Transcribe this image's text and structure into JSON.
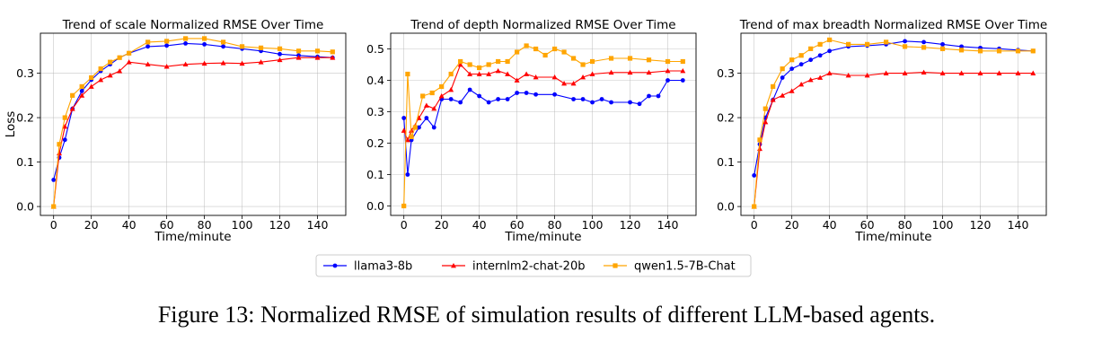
{
  "caption": "Figure 13: Normalized RMSE of simulation results of different LLM-based agents.",
  "legend": {
    "placement": "bottom-center",
    "items": [
      {
        "name": "llama3-8b",
        "color": "#0000ff",
        "marker": "circle"
      },
      {
        "name": "internlm2-chat-20b",
        "color": "#ff0000",
        "marker": "triangle"
      },
      {
        "name": "qwen1.5-7B-Chat",
        "color": "#ffa500",
        "marker": "square"
      }
    ]
  },
  "chart_data": [
    {
      "type": "line",
      "title": "Trend of scale Normalized RMSE Over Time",
      "xlabel": "Time/minute",
      "ylabel": "Loss",
      "xlim": [
        -7,
        155
      ],
      "ylim": [
        -0.02,
        0.39
      ],
      "xticks": [
        0,
        20,
        40,
        60,
        80,
        100,
        120,
        140
      ],
      "yticks": [
        0.0,
        0.1,
        0.2,
        0.3
      ],
      "ytick_labels": [
        "0.0",
        "0.1",
        "0.2",
        "0.3"
      ],
      "grid": true,
      "series": [
        {
          "name": "llama3-8b",
          "points": [
            [
              0,
              0.06
            ],
            [
              3,
              0.11
            ],
            [
              6,
              0.15
            ],
            [
              10,
              0.22
            ],
            [
              15,
              0.26
            ],
            [
              20,
              0.285
            ],
            [
              25,
              0.305
            ],
            [
              30,
              0.32
            ],
            [
              35,
              0.335
            ],
            [
              40,
              0.345
            ],
            [
              50,
              0.36
            ],
            [
              60,
              0.362
            ],
            [
              70,
              0.367
            ],
            [
              80,
              0.365
            ],
            [
              90,
              0.36
            ],
            [
              100,
              0.355
            ],
            [
              110,
              0.35
            ],
            [
              120,
              0.343
            ],
            [
              130,
              0.34
            ],
            [
              140,
              0.337
            ],
            [
              148,
              0.335
            ]
          ]
        },
        {
          "name": "internlm2-chat-20b",
          "points": [
            [
              0,
              0.0
            ],
            [
              3,
              0.12
            ],
            [
              6,
              0.18
            ],
            [
              10,
              0.22
            ],
            [
              15,
              0.25
            ],
            [
              20,
              0.27
            ],
            [
              25,
              0.285
            ],
            [
              30,
              0.295
            ],
            [
              35,
              0.305
            ],
            [
              40,
              0.325
            ],
            [
              50,
              0.32
            ],
            [
              60,
              0.315
            ],
            [
              70,
              0.32
            ],
            [
              80,
              0.322
            ],
            [
              90,
              0.323
            ],
            [
              100,
              0.322
            ],
            [
              110,
              0.325
            ],
            [
              120,
              0.33
            ],
            [
              130,
              0.335
            ],
            [
              140,
              0.335
            ],
            [
              148,
              0.335
            ]
          ]
        },
        {
          "name": "qwen1.5-7B-Chat",
          "points": [
            [
              0,
              0.0
            ],
            [
              3,
              0.14
            ],
            [
              6,
              0.2
            ],
            [
              10,
              0.25
            ],
            [
              15,
              0.27
            ],
            [
              20,
              0.29
            ],
            [
              25,
              0.31
            ],
            [
              30,
              0.325
            ],
            [
              35,
              0.335
            ],
            [
              40,
              0.345
            ],
            [
              50,
              0.37
            ],
            [
              60,
              0.372
            ],
            [
              70,
              0.378
            ],
            [
              80,
              0.378
            ],
            [
              90,
              0.37
            ],
            [
              100,
              0.36
            ],
            [
              110,
              0.357
            ],
            [
              120,
              0.355
            ],
            [
              130,
              0.35
            ],
            [
              140,
              0.35
            ],
            [
              148,
              0.348
            ]
          ]
        }
      ]
    },
    {
      "type": "line",
      "title": "Trend of depth Normalized RMSE Over Time",
      "xlabel": "Time/minute",
      "ylabel": "",
      "xlim": [
        -7,
        155
      ],
      "ylim": [
        -0.03,
        0.55
      ],
      "xticks": [
        0,
        20,
        40,
        60,
        80,
        100,
        120,
        140
      ],
      "yticks": [
        0.0,
        0.1,
        0.2,
        0.3,
        0.4,
        0.5
      ],
      "ytick_labels": [
        "0.0",
        "0.1",
        "0.2",
        "0.3",
        "0.4",
        "0.5"
      ],
      "grid": true,
      "series": [
        {
          "name": "llama3-8b",
          "points": [
            [
              0,
              0.28
            ],
            [
              2,
              0.1
            ],
            [
              4,
              0.21
            ],
            [
              8,
              0.25
            ],
            [
              12,
              0.28
            ],
            [
              16,
              0.25
            ],
            [
              20,
              0.34
            ],
            [
              25,
              0.34
            ],
            [
              30,
              0.33
            ],
            [
              35,
              0.37
            ],
            [
              40,
              0.35
            ],
            [
              45,
              0.33
            ],
            [
              50,
              0.34
            ],
            [
              55,
              0.34
            ],
            [
              60,
              0.36
            ],
            [
              65,
              0.36
            ],
            [
              70,
              0.355
            ],
            [
              80,
              0.355
            ],
            [
              90,
              0.34
            ],
            [
              95,
              0.34
            ],
            [
              100,
              0.33
            ],
            [
              105,
              0.34
            ],
            [
              110,
              0.33
            ],
            [
              120,
              0.33
            ],
            [
              125,
              0.325
            ],
            [
              130,
              0.35
            ],
            [
              135,
              0.35
            ],
            [
              140,
              0.4
            ],
            [
              148,
              0.4
            ]
          ]
        },
        {
          "name": "internlm2-chat-20b",
          "points": [
            [
              0,
              0.24
            ],
            [
              2,
              0.21
            ],
            [
              4,
              0.24
            ],
            [
              8,
              0.28
            ],
            [
              12,
              0.32
            ],
            [
              16,
              0.31
            ],
            [
              20,
              0.35
            ],
            [
              25,
              0.37
            ],
            [
              30,
              0.45
            ],
            [
              35,
              0.42
            ],
            [
              40,
              0.42
            ],
            [
              45,
              0.42
            ],
            [
              50,
              0.43
            ],
            [
              55,
              0.42
            ],
            [
              60,
              0.4
            ],
            [
              65,
              0.42
            ],
            [
              70,
              0.41
            ],
            [
              80,
              0.41
            ],
            [
              85,
              0.39
            ],
            [
              90,
              0.39
            ],
            [
              95,
              0.41
            ],
            [
              100,
              0.42
            ],
            [
              110,
              0.425
            ],
            [
              120,
              0.425
            ],
            [
              130,
              0.425
            ],
            [
              140,
              0.43
            ],
            [
              148,
              0.43
            ]
          ]
        },
        {
          "name": "qwen1.5-7B-Chat",
          "points": [
            [
              0,
              0.0
            ],
            [
              2,
              0.42
            ],
            [
              4,
              0.22
            ],
            [
              6,
              0.25
            ],
            [
              10,
              0.35
            ],
            [
              15,
              0.36
            ],
            [
              20,
              0.38
            ],
            [
              25,
              0.42
            ],
            [
              30,
              0.46
            ],
            [
              35,
              0.45
            ],
            [
              40,
              0.44
            ],
            [
              45,
              0.45
            ],
            [
              50,
              0.46
            ],
            [
              55,
              0.46
            ],
            [
              60,
              0.49
            ],
            [
              65,
              0.51
            ],
            [
              70,
              0.5
            ],
            [
              75,
              0.48
            ],
            [
              80,
              0.5
            ],
            [
              85,
              0.49
            ],
            [
              90,
              0.47
            ],
            [
              95,
              0.45
            ],
            [
              100,
              0.46
            ],
            [
              110,
              0.47
            ],
            [
              120,
              0.47
            ],
            [
              130,
              0.465
            ],
            [
              140,
              0.46
            ],
            [
              148,
              0.46
            ]
          ]
        }
      ]
    },
    {
      "type": "line",
      "title": "Trend of max breadth Normalized RMSE Over Time",
      "xlabel": "Time/minute",
      "ylabel": "",
      "xlim": [
        -7,
        155
      ],
      "ylim": [
        -0.02,
        0.39
      ],
      "xticks": [
        0,
        20,
        40,
        60,
        80,
        100,
        120,
        140
      ],
      "yticks": [
        0.0,
        0.1,
        0.2,
        0.3
      ],
      "ytick_labels": [
        "0.0",
        "0.1",
        "0.2",
        "0.3"
      ],
      "grid": true,
      "series": [
        {
          "name": "llama3-8b",
          "points": [
            [
              0,
              0.07
            ],
            [
              3,
              0.14
            ],
            [
              6,
              0.2
            ],
            [
              10,
              0.24
            ],
            [
              15,
              0.29
            ],
            [
              20,
              0.31
            ],
            [
              25,
              0.32
            ],
            [
              30,
              0.33
            ],
            [
              35,
              0.34
            ],
            [
              40,
              0.35
            ],
            [
              50,
              0.36
            ],
            [
              60,
              0.362
            ],
            [
              70,
              0.365
            ],
            [
              80,
              0.372
            ],
            [
              90,
              0.37
            ],
            [
              100,
              0.365
            ],
            [
              110,
              0.36
            ],
            [
              120,
              0.357
            ],
            [
              130,
              0.355
            ],
            [
              140,
              0.352
            ],
            [
              148,
              0.35
            ]
          ]
        },
        {
          "name": "internlm2-chat-20b",
          "points": [
            [
              0,
              0.0
            ],
            [
              3,
              0.13
            ],
            [
              6,
              0.19
            ],
            [
              10,
              0.24
            ],
            [
              15,
              0.25
            ],
            [
              20,
              0.26
            ],
            [
              25,
              0.275
            ],
            [
              30,
              0.285
            ],
            [
              35,
              0.29
            ],
            [
              40,
              0.3
            ],
            [
              50,
              0.295
            ],
            [
              60,
              0.295
            ],
            [
              70,
              0.3
            ],
            [
              80,
              0.3
            ],
            [
              90,
              0.302
            ],
            [
              100,
              0.3
            ],
            [
              110,
              0.3
            ],
            [
              120,
              0.3
            ],
            [
              130,
              0.3
            ],
            [
              140,
              0.3
            ],
            [
              148,
              0.3
            ]
          ]
        },
        {
          "name": "qwen1.5-7B-Chat",
          "points": [
            [
              0,
              0.0
            ],
            [
              3,
              0.15
            ],
            [
              6,
              0.22
            ],
            [
              10,
              0.27
            ],
            [
              15,
              0.31
            ],
            [
              20,
              0.33
            ],
            [
              25,
              0.34
            ],
            [
              30,
              0.355
            ],
            [
              35,
              0.365
            ],
            [
              40,
              0.375
            ],
            [
              50,
              0.365
            ],
            [
              60,
              0.365
            ],
            [
              70,
              0.37
            ],
            [
              80,
              0.36
            ],
            [
              90,
              0.358
            ],
            [
              100,
              0.355
            ],
            [
              110,
              0.352
            ],
            [
              120,
              0.35
            ],
            [
              130,
              0.35
            ],
            [
              140,
              0.35
            ],
            [
              148,
              0.35
            ]
          ]
        }
      ]
    }
  ]
}
